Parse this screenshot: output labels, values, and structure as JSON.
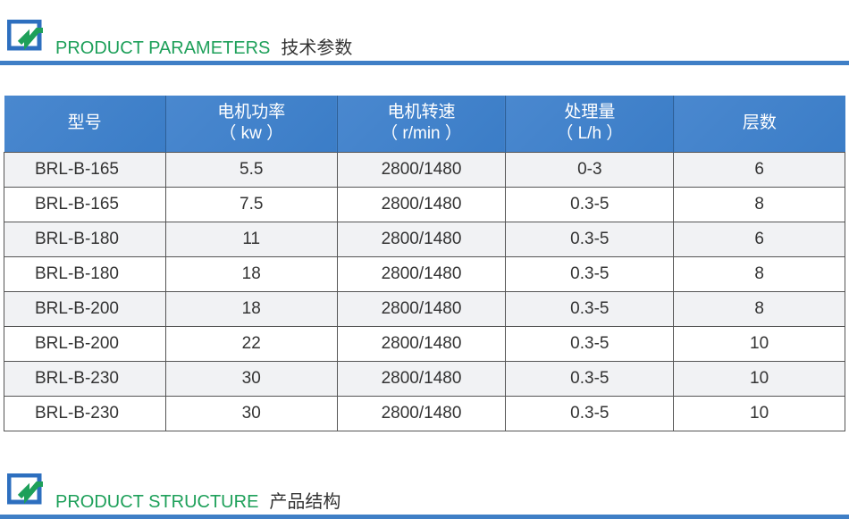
{
  "section1": {
    "title_en": "PRODUCT PARAMETERS",
    "title_cn": "技术参数"
  },
  "section2": {
    "title_en": "PRODUCT STRUCTURE",
    "title_cn": "产品结构"
  },
  "colors": {
    "accent_blue": "#3f7fc6",
    "title_green": "#1ea05a"
  },
  "table": {
    "headers": [
      {
        "l1": "型号",
        "l2": ""
      },
      {
        "l1": "电机功率",
        "l2": "（ kw ）"
      },
      {
        "l1": "电机转速",
        "l2": "（ r/min ）"
      },
      {
        "l1": "处理量",
        "l2": "（ L/h ）"
      },
      {
        "l1": "层数",
        "l2": ""
      }
    ],
    "rows": [
      [
        "BRL-B-165",
        "5.5",
        "2800/1480",
        "0-3",
        "6"
      ],
      [
        "BRL-B-165",
        "7.5",
        "2800/1480",
        "0.3-5",
        "8"
      ],
      [
        "BRL-B-180",
        "11",
        "2800/1480",
        "0.3-5",
        "6"
      ],
      [
        "BRL-B-180",
        "18",
        "2800/1480",
        "0.3-5",
        "8"
      ],
      [
        "BRL-B-200",
        "18",
        "2800/1480",
        "0.3-5",
        "8"
      ],
      [
        "BRL-B-200",
        "22",
        "2800/1480",
        "0.3-5",
        "10"
      ],
      [
        "BRL-B-230",
        "30",
        "2800/1480",
        "0.3-5",
        "10"
      ],
      [
        "BRL-B-230",
        "30",
        "2800/1480",
        "0.3-5",
        "10"
      ]
    ]
  }
}
